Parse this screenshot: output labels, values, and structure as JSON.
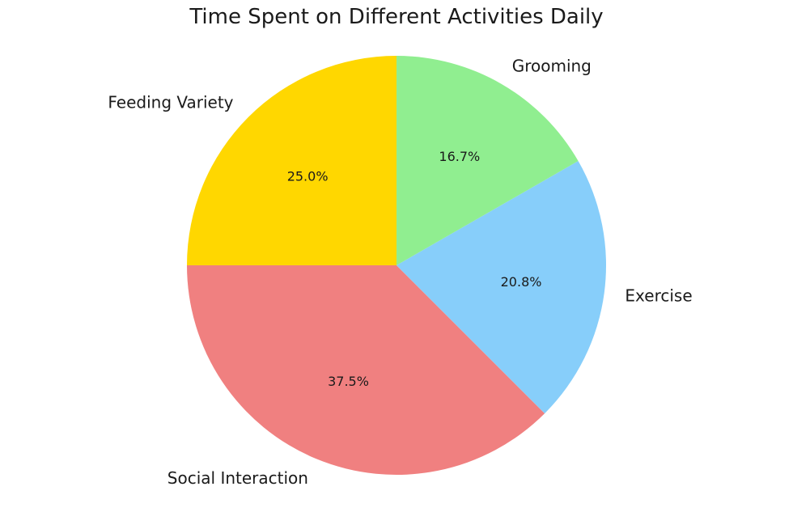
{
  "chart_data": {
    "type": "pie",
    "title": "Time Spent on Different Activities Daily",
    "categories": [
      "Feeding Variety",
      "Social Interaction",
      "Exercise",
      "Grooming"
    ],
    "values": [
      25.0,
      37.5,
      20.8,
      16.7
    ],
    "percent_labels": [
      "25.0%",
      "37.5%",
      "20.8%",
      "16.7%"
    ],
    "colors": [
      "#ffd700",
      "#f08080",
      "#87cefa",
      "#90ee90"
    ],
    "start_angle_deg": 90,
    "direction": "counterclockwise",
    "legend": "none"
  }
}
